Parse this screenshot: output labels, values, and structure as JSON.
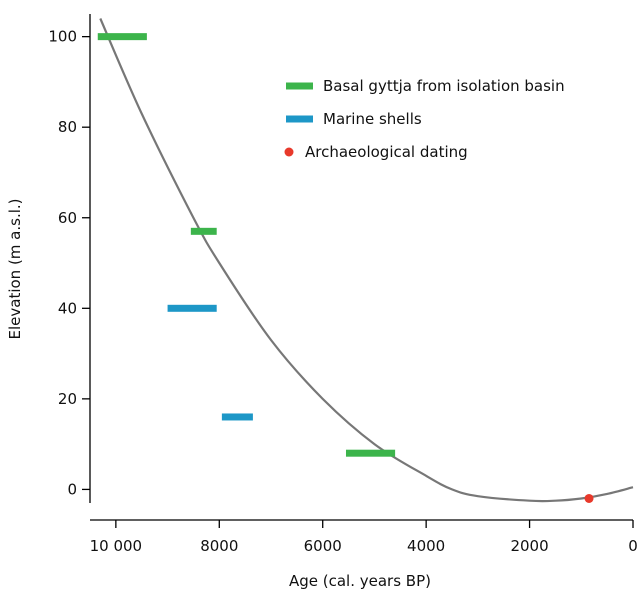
{
  "chart_data": {
    "type": "scatter",
    "xlabel": "Age (cal. years BP)",
    "ylabel": "Elevation (m a.s.l.)",
    "xlim": [
      10500,
      0
    ],
    "ylim": [
      -3,
      105
    ],
    "x_ticks": [
      {
        "value": 10000,
        "label": "10 000"
      },
      {
        "value": 8000,
        "label": "8000"
      },
      {
        "value": 6000,
        "label": "6000"
      },
      {
        "value": 4000,
        "label": "4000"
      },
      {
        "value": 2000,
        "label": "2000"
      },
      {
        "value": 0,
        "label": "0"
      }
    ],
    "y_ticks": [
      {
        "value": 100,
        "label": "100"
      },
      {
        "value": 80,
        "label": "80"
      },
      {
        "value": 60,
        "label": "60"
      },
      {
        "value": 40,
        "label": "40"
      },
      {
        "value": 20,
        "label": "20"
      },
      {
        "value": 0,
        "label": "0"
      }
    ],
    "legend_position": "top-right",
    "series": [
      {
        "name": "Basal gyttja from isolation basin",
        "color": "#3cb44b",
        "marker": "bar",
        "points": [
          {
            "x_min": 9400,
            "x_max": 10350,
            "y": 100
          },
          {
            "x_min": 8050,
            "x_max": 8550,
            "y": 57
          },
          {
            "x_min": 4600,
            "x_max": 5550,
            "y": 8
          }
        ]
      },
      {
        "name": "Marine shells",
        "color": "#1d97c7",
        "marker": "bar",
        "points": [
          {
            "x_min": 8050,
            "x_max": 9000,
            "y": 40
          },
          {
            "x_min": 7350,
            "x_max": 7950,
            "y": 16
          }
        ]
      },
      {
        "name": "Archaeological dating",
        "color": "#e8392b",
        "marker": "dot",
        "points": [
          {
            "x": 850,
            "y": -2
          }
        ]
      }
    ],
    "curve": {
      "color": "#777777",
      "points": [
        [
          10300,
          104
        ],
        [
          9500,
          83
        ],
        [
          8500,
          60
        ],
        [
          8000,
          50
        ],
        [
          7000,
          33
        ],
        [
          6000,
          20
        ],
        [
          5000,
          10
        ],
        [
          4000,
          3
        ],
        [
          3500,
          0
        ],
        [
          3000,
          -1.5
        ],
        [
          2000,
          -2.5
        ],
        [
          1500,
          -2.5
        ],
        [
          1000,
          -2
        ],
        [
          500,
          -1
        ],
        [
          0,
          0.5
        ]
      ]
    }
  }
}
